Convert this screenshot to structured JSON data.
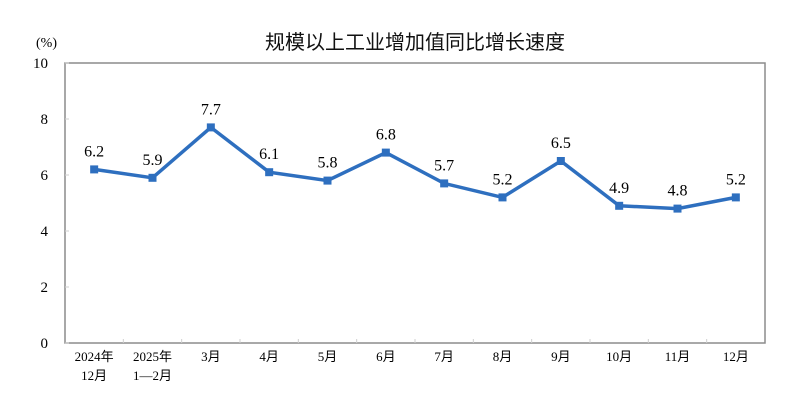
{
  "chart_data": {
    "type": "line",
    "title": "规模以上工业增加值同比增长速度",
    "ylabel": "(%)",
    "xlabel": "",
    "ylim": [
      0,
      10
    ],
    "yticks": [
      0,
      2,
      4,
      6,
      8,
      10
    ],
    "grid": false,
    "legend": null,
    "categories": [
      [
        "2024年",
        "12月"
      ],
      [
        "2025年",
        "1—2月"
      ],
      [
        "3月"
      ],
      [
        "4月"
      ],
      [
        "5月"
      ],
      [
        "6月"
      ],
      [
        "7月"
      ],
      [
        "8月"
      ],
      [
        "9月"
      ],
      [
        "10月"
      ],
      [
        "11月"
      ],
      [
        "12月"
      ]
    ],
    "series": [
      {
        "name": "规模以上工业增加值同比增长速度",
        "color": "#2E6FBF",
        "marker": "square",
        "values": [
          6.2,
          5.9,
          7.7,
          6.1,
          5.8,
          6.8,
          5.7,
          5.2,
          6.5,
          4.9,
          4.8,
          5.2
        ],
        "labels": [
          "6.2",
          "5.9",
          "7.7",
          "6.1",
          "5.8",
          "6.8",
          "5.7",
          "5.2",
          "6.5",
          "4.9",
          "4.8",
          "5.2"
        ]
      }
    ]
  },
  "colors": {
    "line": "#2E6FBF",
    "axis": "#8C8C8C",
    "text": "#000000"
  }
}
